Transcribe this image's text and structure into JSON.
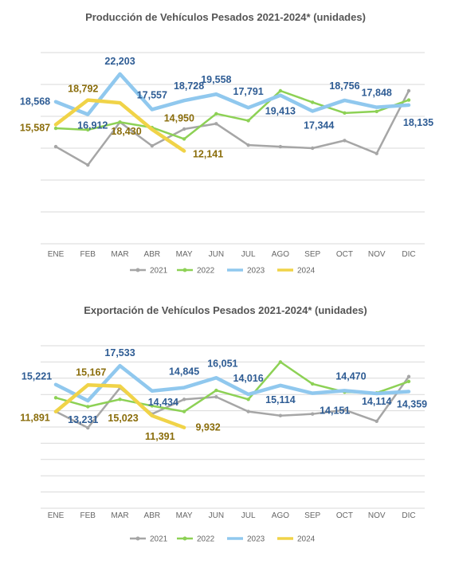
{
  "chart_data": [
    {
      "type": "line",
      "title": "Producción de Vehículos Pesados 2021-2024* (unidades)",
      "categories": [
        "ENE",
        "FEB",
        "MAR",
        "ABR",
        "MAY",
        "JUN",
        "JUL",
        "AGO",
        "SEP",
        "OCT",
        "NOV",
        "DIC"
      ],
      "ylim": [
        0,
        25000
      ],
      "grid": true,
      "legend_position": "bottom",
      "series": [
        {
          "name": "2021",
          "color": "#a6a6a6",
          "values": [
            12700,
            10300,
            15900,
            12800,
            15000,
            15700,
            12900,
            12700,
            12500,
            13500,
            11800,
            20000
          ]
        },
        {
          "name": "2022",
          "color": "#8dd155",
          "values": [
            15100,
            14900,
            15900,
            15200,
            13700,
            17000,
            16100,
            20000,
            18500,
            17100,
            17300,
            18800
          ]
        },
        {
          "name": "2023",
          "color": "#90c8ee",
          "values": [
            18568,
            16912,
            22203,
            17557,
            18728,
            19558,
            17791,
            19413,
            17344,
            18756,
            17848,
            18135
          ]
        },
        {
          "name": "2024",
          "color": "#f0d348",
          "values": [
            15587,
            18792,
            18430,
            14950,
            12141,
            null,
            null,
            null,
            null,
            null,
            null,
            null
          ]
        }
      ],
      "labels": [
        {
          "text": "18,568",
          "color": "#2e5c94"
        },
        {
          "text": "16,912",
          "color": "#2e5c94"
        },
        {
          "text": "22,203",
          "color": "#2e5c94"
        },
        {
          "text": "17,557",
          "color": "#2e5c94"
        },
        {
          "text": "18,728",
          "color": "#2e5c94"
        },
        {
          "text": "19,558",
          "color": "#2e5c94"
        },
        {
          "text": "17,791",
          "color": "#2e5c94"
        },
        {
          "text": "19,413",
          "color": "#2e5c94"
        },
        {
          "text": "17,344",
          "color": "#2e5c94"
        },
        {
          "text": "18,756",
          "color": "#2e5c94"
        },
        {
          "text": "17,848",
          "color": "#2e5c94"
        },
        {
          "text": "18,135",
          "color": "#2e5c94"
        },
        {
          "text": "15,587",
          "color": "#8a6d0b"
        },
        {
          "text": "18,792",
          "color": "#8a6d0b"
        },
        {
          "text": "18,430",
          "color": "#8a6d0b"
        },
        {
          "text": "14,950",
          "color": "#8a6d0b"
        },
        {
          "text": "12,141",
          "color": "#8a6d0b"
        }
      ]
    },
    {
      "type": "line",
      "title": "Exportación de Vehículos Pesados 2021-2024* (unidades)",
      "categories": [
        "ENE",
        "FEB",
        "MAR",
        "ABR",
        "MAY",
        "JUN",
        "JUL",
        "AGO",
        "SEP",
        "OCT",
        "NOV",
        "DIC"
      ],
      "ylim": [
        0,
        20000
      ],
      "grid": true,
      "legend_position": "bottom",
      "series": [
        {
          "name": "2021",
          "color": "#a6a6a6",
          "values": [
            11900,
            9900,
            14800,
            11600,
            13400,
            13700,
            11900,
            11400,
            11600,
            12100,
            10700,
            16200
          ]
        },
        {
          "name": "2022",
          "color": "#8dd155",
          "values": [
            13600,
            12500,
            13400,
            12600,
            11900,
            14500,
            13400,
            18000,
            15300,
            14300,
            14200,
            15600
          ]
        },
        {
          "name": "2023",
          "color": "#90c8ee",
          "values": [
            15221,
            13231,
            17533,
            14434,
            14845,
            16051,
            14016,
            15114,
            14151,
            14470,
            14114,
            14359
          ]
        },
        {
          "name": "2024",
          "color": "#f0d348",
          "values": [
            11891,
            15167,
            15023,
            11391,
            9932,
            null,
            null,
            null,
            null,
            null,
            null,
            null
          ]
        }
      ],
      "labels": [
        {
          "text": "15,221",
          "color": "#2e5c94"
        },
        {
          "text": "13,231",
          "color": "#2e5c94"
        },
        {
          "text": "17,533",
          "color": "#2e5c94"
        },
        {
          "text": "14,434",
          "color": "#2e5c94"
        },
        {
          "text": "14,845",
          "color": "#2e5c94"
        },
        {
          "text": "16,051",
          "color": "#2e5c94"
        },
        {
          "text": "14,016",
          "color": "#2e5c94"
        },
        {
          "text": "15,114",
          "color": "#2e5c94"
        },
        {
          "text": "14,151",
          "color": "#2e5c94"
        },
        {
          "text": "14,470",
          "color": "#2e5c94"
        },
        {
          "text": "14,114",
          "color": "#2e5c94"
        },
        {
          "text": "14,359",
          "color": "#2e5c94"
        },
        {
          "text": "11,891",
          "color": "#8a6d0b"
        },
        {
          "text": "15,167",
          "color": "#8a6d0b"
        },
        {
          "text": "15,023",
          "color": "#8a6d0b"
        },
        {
          "text": "11,391",
          "color": "#8a6d0b"
        },
        {
          "text": "9,932",
          "color": "#8a6d0b"
        }
      ]
    }
  ]
}
